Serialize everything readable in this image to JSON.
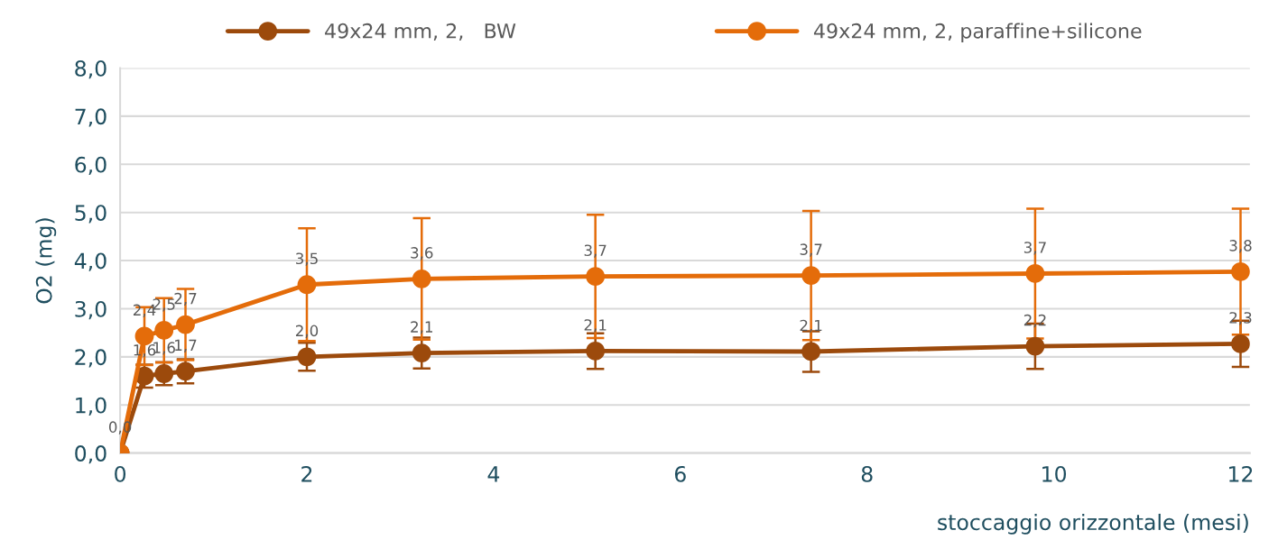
{
  "chart_data": {
    "type": "line",
    "xlabel": "stoccaggio orizzontale (mesi)",
    "ylabel": "O2 (mg)",
    "x": [
      0,
      0.26,
      0.47,
      0.7,
      2.0,
      3.23,
      5.09,
      7.4,
      9.8,
      12.0
    ],
    "series": [
      {
        "name": "49x24 mm, 2,   BW",
        "color": "#9c4a0c",
        "values": [
          0,
          1.6,
          1.65,
          1.7,
          2.0,
          2.08,
          2.12,
          2.11,
          2.22,
          2.27
        ],
        "errors": [
          null,
          0.24,
          0.24,
          0.25,
          0.29,
          0.32,
          0.37,
          0.42,
          0.47,
          0.48
        ],
        "value_labels": [
          null,
          "1,6",
          "1,6",
          "1,7",
          "2,0",
          "2,1",
          "2,1",
          "2,1",
          "2,2",
          "2,3"
        ]
      },
      {
        "name": "49x24 mm, 2, paraffine+silicone",
        "color": "#e46c0a",
        "values": [
          0,
          2.43,
          2.55,
          2.67,
          3.5,
          3.62,
          3.67,
          3.69,
          3.73,
          3.77
        ],
        "errors": [
          null,
          0.6,
          0.67,
          0.74,
          1.17,
          1.26,
          1.28,
          1.34,
          1.35,
          1.31
        ],
        "value_labels": [
          "0,0",
          "2,4",
          "2,5",
          "2,7",
          "3,5",
          "3,6",
          "3,7",
          "3,7",
          "3,7",
          "3,8"
        ]
      }
    ],
    "xlim": [
      0,
      12.1
    ],
    "xticks": [
      0,
      2,
      4,
      6,
      8,
      10,
      12
    ],
    "ylim": [
      0,
      8
    ],
    "yticks": [
      {
        "value": 0,
        "label": "0,0"
      },
      {
        "value": 1,
        "label": "1,0"
      },
      {
        "value": 2,
        "label": "2,0"
      },
      {
        "value": 3,
        "label": "3,0"
      },
      {
        "value": 4,
        "label": "4,0"
      },
      {
        "value": 5,
        "label": "5,0"
      },
      {
        "value": 6,
        "label": "6,0"
      },
      {
        "value": 7,
        "label": "7,0"
      },
      {
        "value": 8,
        "label": "8,0"
      }
    ],
    "grid": "y",
    "legend": "top",
    "marker": "circle",
    "line_style": "solid"
  }
}
